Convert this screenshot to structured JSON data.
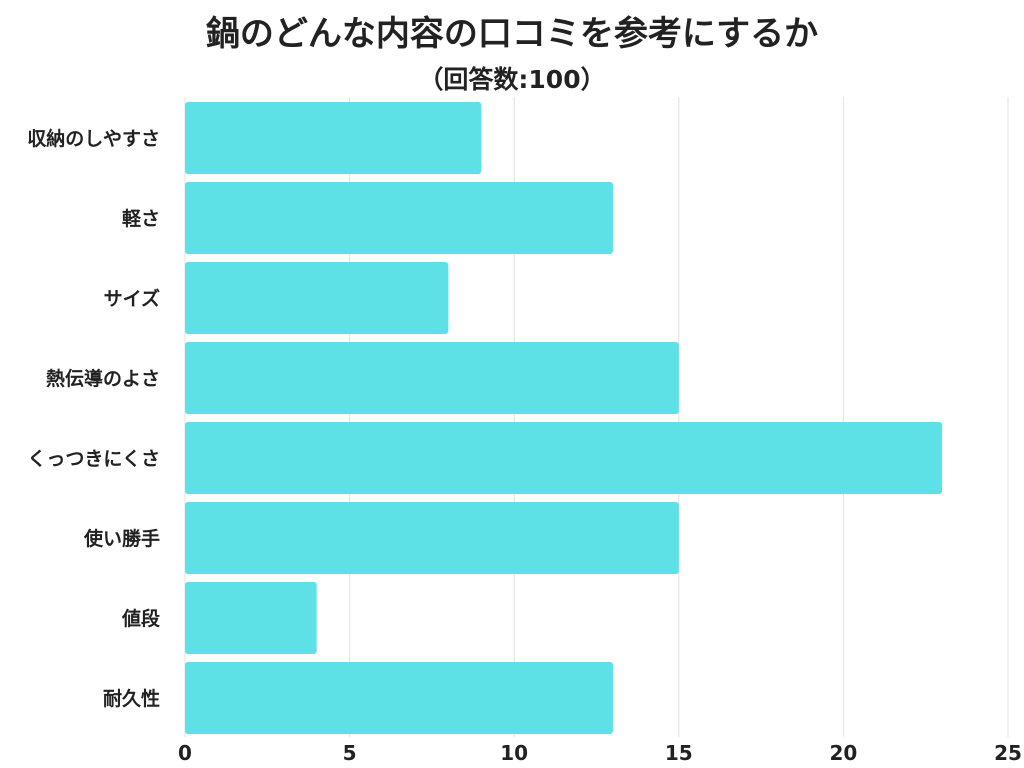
{
  "title": "鍋のどんな内容の口コミを参考にするか",
  "subtitle": "（回答数:100）",
  "colors": {
    "bar": "#5ee1e6",
    "grid": "#e2e2e2",
    "text": "#222222"
  },
  "chart_data": {
    "type": "bar",
    "orientation": "horizontal",
    "categories": [
      "収納のしやすさ",
      "軽さ",
      "サイズ",
      "熱伝導のよさ",
      "くっつきにくさ",
      "使い勝手",
      "値段",
      "耐久性"
    ],
    "values": [
      9,
      13,
      8,
      15,
      23,
      15,
      4,
      13
    ],
    "xlim": [
      0,
      25
    ],
    "xticks": [
      0,
      5,
      10,
      15,
      20,
      25
    ],
    "grid": true,
    "legend": "none"
  }
}
